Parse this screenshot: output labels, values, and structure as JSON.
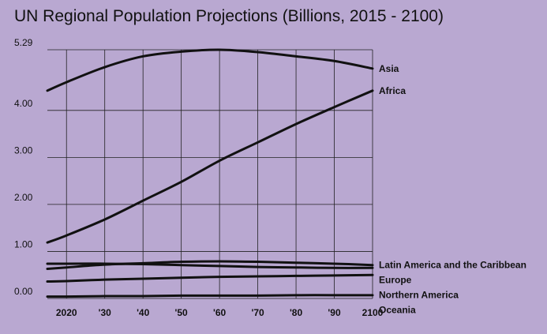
{
  "chart_data": {
    "type": "line",
    "title": "UN Regional Population Projections (Billions, 2015 - 2100)",
    "xlabel": "",
    "ylabel": "",
    "x": [
      2015,
      2020,
      2030,
      2040,
      2050,
      2060,
      2070,
      2080,
      2090,
      2100
    ],
    "xlim": [
      2015,
      2100
    ],
    "ylim": [
      0,
      5.29
    ],
    "y_ticks": [
      0,
      1,
      2,
      3,
      4,
      5.29
    ],
    "y_tick_labels": [
      "0.00",
      "1.00",
      "2.00",
      "3.00",
      "4.00",
      "5.29"
    ],
    "x_ticks": [
      2020,
      2030,
      2040,
      2050,
      2060,
      2070,
      2080,
      2090,
      2100
    ],
    "x_tick_labels": [
      "2020",
      "'30",
      "'40",
      "'50",
      "'60",
      "'70",
      "'80",
      "'90",
      "2100"
    ],
    "grid": true,
    "series_label_position": "right-end",
    "series": [
      {
        "name": "Asia",
        "values": [
          4.42,
          4.6,
          4.92,
          5.15,
          5.25,
          5.29,
          5.24,
          5.15,
          5.05,
          4.89
        ]
      },
      {
        "name": "Africa",
        "values": [
          1.19,
          1.34,
          1.68,
          2.08,
          2.48,
          2.93,
          3.32,
          3.71,
          4.07,
          4.42
        ]
      },
      {
        "name": "Latin America and the Caribbean",
        "values": [
          0.63,
          0.66,
          0.72,
          0.75,
          0.78,
          0.79,
          0.78,
          0.76,
          0.74,
          0.71
        ]
      },
      {
        "name": "Europe",
        "values": [
          0.74,
          0.74,
          0.74,
          0.73,
          0.71,
          0.69,
          0.67,
          0.66,
          0.65,
          0.65
        ]
      },
      {
        "name": "Northern America",
        "values": [
          0.36,
          0.37,
          0.4,
          0.42,
          0.44,
          0.46,
          0.47,
          0.48,
          0.49,
          0.5
        ]
      },
      {
        "name": "Oceania",
        "values": [
          0.04,
          0.04,
          0.05,
          0.05,
          0.06,
          0.06,
          0.06,
          0.07,
          0.07,
          0.07
        ]
      }
    ]
  }
}
